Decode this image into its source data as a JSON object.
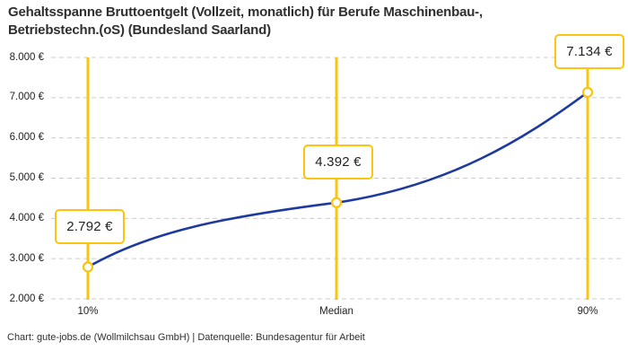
{
  "header": {
    "title_line1": "Gehaltsspanne Bruttoentgelt (Vollzeit, monatlich) für Berufe Maschinenbau-,",
    "title_line2": "Betriebstechn.(oS) (Bundesland Saarland)"
  },
  "footer": {
    "credit": "Chart: gute-jobs.de (Wollmilchsau GmbH) | Datenquelle: Bundesagentur für Arbeit"
  },
  "chart_data": {
    "type": "line",
    "title": "Gehaltsspanne Bruttoentgelt (Vollzeit, monatlich) für Berufe Maschinenbau-, Betriebstechn.(oS) (Bundesland Saarland)",
    "categories": [
      "10%",
      "Median",
      "90%"
    ],
    "values": [
      2792,
      4392,
      7134
    ],
    "value_labels": [
      "2.792 €",
      "4.392 €",
      "7.134 €"
    ],
    "xlabel": "",
    "ylabel": "",
    "ylim": [
      2000,
      8000
    ],
    "y_ticks": [
      2000,
      3000,
      4000,
      5000,
      6000,
      7000,
      8000
    ],
    "y_tick_labels": [
      "2.000 €",
      "3.000 €",
      "4.000 €",
      "5.000 €",
      "6.000 €",
      "7.000 €",
      "8.000 €"
    ],
    "grid": "horizontal-dashed",
    "legend": "none",
    "colors": {
      "line": "#1e3a9f",
      "accent": "#fcc40d",
      "grid": "#cccccc",
      "text": "#222222",
      "background": "#ffffff"
    }
  }
}
